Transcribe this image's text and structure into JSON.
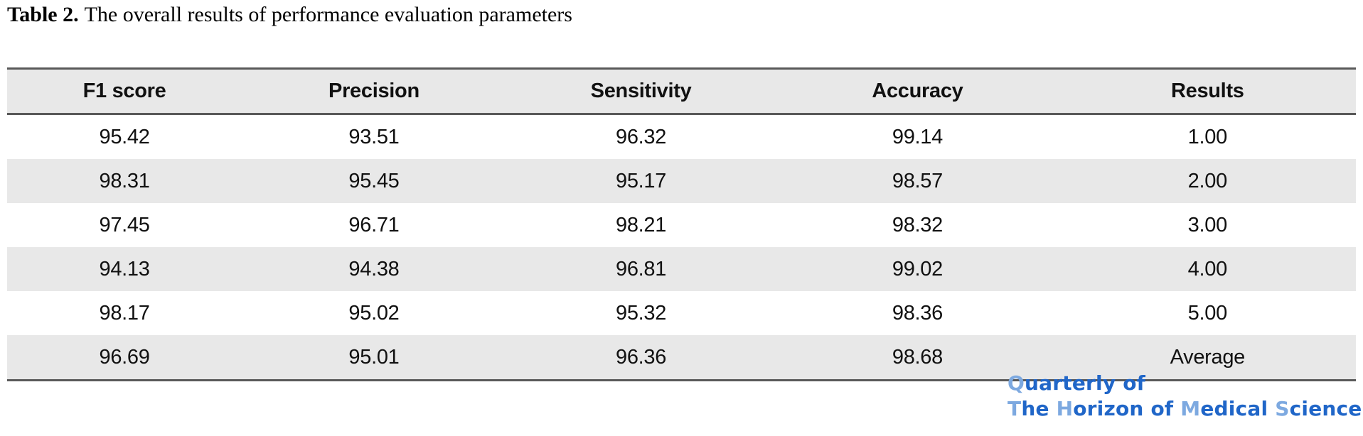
{
  "caption": {
    "label": "Table 2.",
    "text": "The overall results of performance evaluation parameters"
  },
  "table": {
    "columns": [
      "F1 score",
      "Precision",
      "Sensitivity",
      "Accuracy",
      "Results"
    ],
    "rows": [
      [
        "95.42",
        "93.51",
        "96.32",
        "99.14",
        "1.00"
      ],
      [
        "98.31",
        "95.45",
        "95.17",
        "98.57",
        "2.00"
      ],
      [
        "97.45",
        "96.71",
        "98.21",
        "98.32",
        "3.00"
      ],
      [
        "94.13",
        "94.38",
        "96.81",
        "99.02",
        "4.00"
      ],
      [
        "98.17",
        "95.02",
        "95.32",
        "98.36",
        "5.00"
      ],
      [
        "96.69",
        "95.01",
        "96.36",
        "98.68",
        "Average"
      ]
    ]
  },
  "colors": {
    "stripe_gray": "#e8e8e8",
    "border_gray": "#595959",
    "logo_dark_blue": "#2066c8",
    "logo_light_blue": "#7da9e0"
  },
  "journal_logo": {
    "line1": [
      {
        "text": "Q",
        "tone": "light"
      },
      {
        "text": "uarterly of",
        "tone": "dark"
      }
    ],
    "line2": [
      {
        "text": "T",
        "tone": "light"
      },
      {
        "text": "he ",
        "tone": "dark"
      },
      {
        "text": "H",
        "tone": "light"
      },
      {
        "text": "orizon of ",
        "tone": "dark"
      },
      {
        "text": "M",
        "tone": "light"
      },
      {
        "text": "edical ",
        "tone": "dark"
      },
      {
        "text": "S",
        "tone": "light"
      },
      {
        "text": "ciences",
        "tone": "dark"
      }
    ]
  }
}
